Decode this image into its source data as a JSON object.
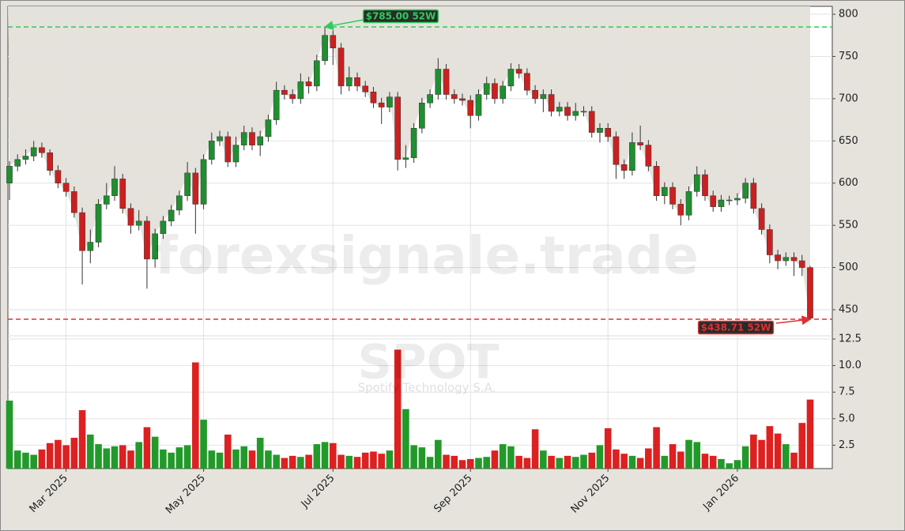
{
  "chart_data": {
    "type": "candlestick",
    "watermark": "forexsignale.trade",
    "symbol": "SPOT",
    "company": "Spotify Technology S.A.",
    "categories": [
      null,
      null,
      null,
      null,
      null,
      null,
      null,
      "Mar 2025",
      null,
      null,
      null,
      null,
      null,
      null,
      null,
      null,
      null,
      null,
      null,
      null,
      null,
      null,
      null,
      null,
      "May 2025",
      null,
      null,
      null,
      null,
      null,
      null,
      null,
      null,
      null,
      null,
      null,
      null,
      null,
      null,
      null,
      "Jul 2025",
      null,
      null,
      null,
      null,
      null,
      null,
      null,
      null,
      null,
      null,
      null,
      null,
      null,
      null,
      null,
      null,
      "Sep 2025",
      null,
      null,
      null,
      null,
      null,
      null,
      null,
      null,
      null,
      null,
      null,
      null,
      null,
      null,
      null,
      null,
      "Nov 2025",
      null,
      null,
      null,
      null,
      null,
      null,
      null,
      null,
      null,
      null,
      null,
      null,
      null,
      null,
      null,
      "Jan 2026",
      null,
      null,
      null,
      null,
      null,
      null,
      null,
      null,
      null
    ],
    "open": [
      600,
      620,
      628,
      632,
      642,
      636,
      615,
      600,
      590,
      565,
      520,
      530,
      575,
      585,
      605,
      570,
      550,
      555,
      510,
      540,
      555,
      568,
      585,
      612,
      575,
      628,
      650,
      655,
      625,
      645,
      660,
      645,
      655,
      675,
      710,
      705,
      700,
      720,
      715,
      745,
      775,
      760,
      715,
      725,
      715,
      708,
      695,
      690,
      702,
      628,
      630,
      665,
      695,
      705,
      735,
      705,
      700,
      698,
      680,
      705,
      718,
      700,
      715,
      735,
      730,
      710,
      700,
      705,
      685,
      690,
      680,
      685,
      685,
      660,
      665,
      655,
      622,
      615,
      648,
      645,
      620,
      585,
      595,
      575,
      562,
      590,
      610,
      585,
      572,
      580,
      580,
      582,
      600,
      570,
      545,
      515,
      508,
      512,
      508,
      500
    ],
    "high": [
      626,
      634,
      640,
      650,
      648,
      640,
      621,
      606,
      596,
      571,
      545,
      581,
      600,
      620,
      611,
      576,
      568,
      561,
      546,
      561,
      574,
      591,
      625,
      618,
      634,
      660,
      662,
      661,
      655,
      668,
      666,
      662,
      681,
      720,
      716,
      711,
      730,
      726,
      752,
      785,
      781,
      766,
      738,
      731,
      721,
      714,
      701,
      708,
      708,
      645,
      671,
      701,
      711,
      748,
      741,
      711,
      706,
      704,
      711,
      726,
      724,
      721,
      742,
      741,
      736,
      716,
      711,
      711,
      696,
      696,
      695,
      691,
      691,
      671,
      671,
      661,
      628,
      660,
      668,
      651,
      626,
      601,
      601,
      581,
      596,
      620,
      616,
      591,
      586,
      585,
      588,
      606,
      606,
      576,
      551,
      521,
      518,
      518,
      515,
      502
    ],
    "low": [
      580,
      614,
      622,
      626,
      630,
      609,
      594,
      584,
      559,
      480,
      505,
      524,
      569,
      579,
      564,
      540,
      544,
      475,
      500,
      534,
      549,
      562,
      579,
      540,
      569,
      622,
      644,
      619,
      619,
      639,
      639,
      632,
      649,
      669,
      699,
      694,
      694,
      706,
      709,
      740,
      740,
      705,
      709,
      709,
      702,
      689,
      670,
      684,
      615,
      618,
      624,
      659,
      689,
      699,
      699,
      694,
      692,
      665,
      674,
      699,
      694,
      694,
      709,
      724,
      704,
      694,
      684,
      679,
      679,
      674,
      674,
      679,
      654,
      648,
      649,
      605,
      605,
      609,
      639,
      614,
      579,
      575,
      569,
      550,
      556,
      584,
      579,
      566,
      566,
      574,
      574,
      576,
      564,
      539,
      505,
      498,
      502,
      490,
      490,
      438.71
    ],
    "close": [
      620,
      628,
      632,
      642,
      636,
      615,
      600,
      590,
      565,
      520,
      530,
      575,
      585,
      605,
      570,
      550,
      555,
      510,
      540,
      555,
      568,
      585,
      612,
      575,
      628,
      650,
      655,
      625,
      645,
      660,
      645,
      655,
      675,
      710,
      705,
      700,
      720,
      715,
      745,
      775,
      760,
      715,
      725,
      715,
      708,
      695,
      690,
      702,
      628,
      630,
      665,
      695,
      705,
      735,
      705,
      700,
      698,
      680,
      705,
      718,
      700,
      715,
      735,
      730,
      710,
      700,
      705,
      685,
      690,
      680,
      685,
      685,
      660,
      665,
      655,
      622,
      615,
      648,
      645,
      620,
      585,
      595,
      575,
      562,
      590,
      610,
      585,
      572,
      580,
      580,
      582,
      600,
      570,
      545,
      515,
      508,
      512,
      508,
      500,
      440
    ],
    "volume": [
      6.7,
      2.0,
      1.8,
      1.6,
      2.1,
      2.7,
      3.0,
      2.5,
      3.2,
      5.8,
      3.5,
      2.6,
      2.2,
      2.4,
      2.5,
      2.0,
      2.8,
      4.2,
      3.3,
      2.1,
      1.8,
      2.3,
      2.5,
      10.3,
      4.9,
      2.0,
      1.8,
      3.5,
      2.1,
      2.4,
      2.0,
      3.2,
      2.0,
      1.6,
      1.3,
      1.5,
      1.4,
      1.6,
      2.6,
      2.8,
      2.7,
      1.6,
      1.5,
      1.4,
      1.8,
      1.9,
      1.7,
      2.0,
      11.5,
      5.9,
      2.5,
      2.3,
      1.4,
      3.0,
      1.6,
      1.5,
      1.1,
      1.2,
      1.3,
      1.4,
      2.0,
      2.6,
      2.4,
      1.5,
      1.3,
      4.0,
      2.0,
      1.5,
      1.3,
      1.5,
      1.4,
      1.6,
      1.8,
      2.5,
      4.1,
      2.1,
      1.7,
      1.5,
      1.3,
      2.2,
      4.2,
      1.5,
      2.6,
      1.9,
      3.0,
      2.8,
      1.7,
      1.5,
      1.2,
      0.8,
      1.1,
      2.4,
      3.5,
      3.0,
      4.3,
      3.6,
      2.6,
      1.8,
      4.6,
      6.8
    ],
    "up_color": "#1f8f2f",
    "down_color": "#cc2020",
    "ylim": [
      419.1,
      809.4
    ],
    "yticks": [
      450,
      500,
      550,
      600,
      650,
      700,
      750,
      800
    ],
    "y2lim": [
      0.3,
      12.8
    ],
    "y2ticks": [
      2.5,
      {
        "value": 5,
        "label": "5.0"
      },
      7.5,
      {
        "value": 10,
        "label": "10.0"
      },
      12.5
    ],
    "grid": true,
    "high_52w": {
      "value": 785,
      "label": "$785.00 52W",
      "color": "#2ecc5a"
    },
    "low_52w": {
      "value": 438.71,
      "label": "$438.71 52W",
      "color": "#e03030"
    }
  }
}
